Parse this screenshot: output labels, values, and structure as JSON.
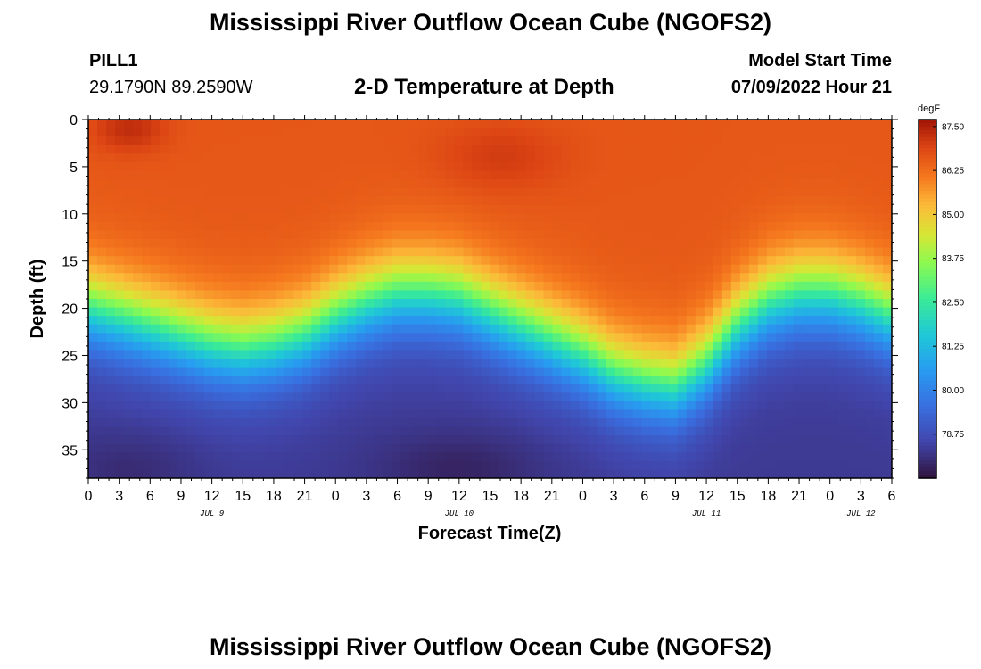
{
  "chart_data": {
    "type": "heatmap",
    "title": "Mississippi River Outflow Ocean Cube (NGOFS2)",
    "station": "PILL1",
    "location": "29.1790N  89.2590W",
    "subtitle": "2-D Temperature at Depth",
    "model_start_label": "Model Start Time",
    "model_start_value": "07/09/2022 Hour 21",
    "xlabel": "Forecast Time(Z)",
    "ylabel": "Depth (ft)",
    "units": "degF",
    "x_hours_range": [
      0,
      78
    ],
    "x_ticks": [
      "0",
      "3",
      "6",
      "9",
      "12",
      "15",
      "18",
      "21",
      "0",
      "3",
      "6",
      "9",
      "12",
      "15",
      "18",
      "21",
      "0",
      "3",
      "6",
      "9",
      "12",
      "15",
      "18",
      "21",
      "0",
      "3",
      "6"
    ],
    "date_labels": [
      {
        "label": "JUL 9",
        "hour": 12
      },
      {
        "label": "JUL 10",
        "hour": 36
      },
      {
        "label": "JUL 11",
        "hour": 60
      },
      {
        "label": "JUL 12",
        "hour": 75
      }
    ],
    "ylim": [
      0,
      38
    ],
    "y_ticks": [
      0,
      5,
      10,
      15,
      20,
      25,
      30,
      35
    ],
    "colorbar": {
      "min": 77.5,
      "max": 87.7,
      "ticks": [
        "87.50",
        "86.25",
        "85.00",
        "83.75",
        "82.50",
        "81.25",
        "80.00",
        "78.75"
      ]
    },
    "thermocline_depth_ft": {
      "hours": [
        0,
        3,
        6,
        9,
        12,
        15,
        18,
        21,
        24,
        27,
        30,
        33,
        36,
        39,
        42,
        45,
        48,
        51,
        54,
        57,
        60,
        63,
        66,
        69,
        72,
        75,
        78
      ],
      "depth_ft": [
        20,
        21,
        22,
        23,
        24,
        24.5,
        24,
        23,
        21,
        19.5,
        18.5,
        18.5,
        19,
        20.5,
        22,
        23.5,
        25,
        27,
        28,
        28.5,
        26,
        22,
        19.5,
        18.5,
        18.5,
        19.5,
        21
      ]
    },
    "surface_temp_degF": 86.6,
    "bottom_temp_degF": 78.3
  },
  "footer": {
    "title": "Mississippi River Outflow Ocean Cube (NGOFS2)"
  }
}
